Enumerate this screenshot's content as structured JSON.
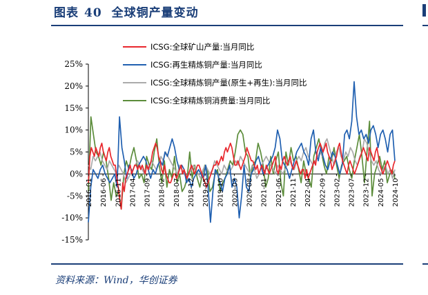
{
  "figure": {
    "label": "图表",
    "number": "40",
    "title": "全球铜产量变动",
    "source": "资料来源：Wind，华创证券"
  },
  "chart_data": {
    "type": "line",
    "y_unit": "%",
    "ylim": [
      -15,
      25
    ],
    "y_ticks": [
      25,
      20,
      15,
      10,
      5,
      0,
      -5,
      -10,
      -15
    ],
    "y_tick_labels": [
      "25%",
      "20%",
      "15%",
      "10%",
      "5%",
      "0%",
      "-5%",
      "-10%",
      "-15%"
    ],
    "x_start": "2016-01",
    "x_end": "2024-10",
    "x_tick_labels": [
      "2016-01",
      "2016-06",
      "2016-11",
      "2017-04",
      "2017-09",
      "2018-02",
      "2018-07",
      "2018-12",
      "2019-05",
      "2019-10",
      "2020-03",
      "2020-08",
      "2021-01",
      "2021-06",
      "2021-11",
      "2022-04",
      "2022-09",
      "2023-02",
      "2023-07",
      "2023-12",
      "2024-05",
      "2024-10"
    ],
    "grid": false,
    "legend_position": "top",
    "series": [
      {
        "name": "ICSG:全球矿山产量:当月同比",
        "color": "#e8262c",
        "values": [
          -2,
          4,
          6,
          5,
          4,
          6,
          5,
          4,
          6,
          7,
          5,
          4,
          3,
          5,
          6,
          4,
          3,
          2,
          2,
          -1,
          -3,
          -6,
          -8,
          -2,
          -4,
          -1,
          0,
          1,
          2,
          0,
          1,
          2,
          2,
          1,
          2,
          1,
          2,
          1,
          0,
          2,
          1,
          2,
          3,
          5,
          6,
          7,
          6,
          4,
          3,
          1,
          0,
          2,
          0,
          -1,
          -2,
          -2,
          -1,
          0,
          0,
          -1,
          0,
          1,
          2,
          0,
          1,
          0,
          -1,
          0,
          1,
          2,
          1,
          0,
          1,
          2,
          2,
          1,
          0,
          -1,
          -2,
          -3,
          -2,
          -1,
          0,
          1,
          2,
          2,
          3,
          2,
          3,
          4,
          3,
          5,
          6,
          5,
          6,
          7,
          6,
          4,
          2,
          2,
          3,
          2,
          1,
          2,
          3,
          4,
          6,
          5,
          4,
          3,
          3,
          2,
          1,
          2,
          0,
          1,
          2,
          1,
          0,
          2,
          1,
          0,
          1,
          2,
          3,
          4,
          1,
          0,
          2,
          1,
          3,
          4,
          3,
          2,
          3,
          4,
          2,
          1,
          2,
          3,
          2,
          1,
          0,
          1,
          1,
          -1,
          1,
          -1,
          0,
          1,
          2,
          3,
          2,
          5,
          6,
          7,
          6,
          5,
          6,
          7,
          5,
          4,
          3,
          1,
          2,
          3,
          4,
          6,
          7,
          5,
          3,
          2,
          1,
          0,
          2,
          3,
          2,
          1,
          0,
          1,
          2,
          3,
          4,
          5,
          6,
          5,
          4,
          3,
          6,
          5,
          4,
          3,
          5,
          6,
          4,
          2,
          1,
          0,
          1,
          2,
          3,
          2,
          1,
          0,
          2,
          3
        ]
      },
      {
        "name": "ICSG:再生精炼铜产量:当月同比",
        "color": "#1f5fb0",
        "values": [
          -11,
          -3,
          1,
          0,
          -1,
          1,
          2,
          0,
          -1,
          -2,
          -1,
          0,
          -3,
          13,
          6,
          3,
          -1,
          2,
          1,
          -1,
          0,
          2,
          3,
          4,
          3,
          1,
          -1,
          1,
          0,
          2,
          3,
          2,
          5,
          4,
          6,
          8,
          6,
          3,
          1,
          2,
          1,
          -2,
          -1,
          -3,
          -1,
          0,
          1,
          0,
          -1,
          2,
          -3,
          -11,
          -4,
          1,
          0,
          -2,
          -4,
          -1,
          0,
          2,
          -3,
          -1,
          -3,
          -10,
          -5,
          2,
          -3,
          -4,
          0,
          1,
          3,
          4,
          2,
          0,
          1,
          2,
          3,
          4,
          6,
          10,
          8,
          3,
          2,
          1,
          -1,
          1,
          3,
          5,
          6,
          7,
          5,
          4,
          2,
          8,
          10,
          5,
          3,
          6,
          4,
          2,
          1,
          3,
          5,
          4,
          2,
          0,
          2,
          9,
          10,
          8,
          12,
          21,
          13,
          9,
          10,
          8,
          9,
          7,
          10,
          11,
          9,
          6,
          9,
          10,
          8,
          5,
          9,
          10,
          3
        ]
      },
      {
        "name": "ICSG:全球精炼铜产量(原生+再生):当月同比",
        "color": "#aaaaaa",
        "values": [
          2,
          1,
          4,
          3,
          4,
          5,
          3,
          2,
          1,
          3,
          2,
          1,
          0,
          2,
          1,
          0,
          -2,
          -1,
          0,
          1,
          2,
          3,
          2,
          1,
          0,
          2,
          1,
          3,
          2,
          1,
          2,
          4,
          3,
          5,
          4,
          3,
          2,
          1,
          0,
          2,
          1,
          0,
          -1,
          0,
          1,
          2,
          1,
          0,
          -1,
          1,
          2,
          1,
          0,
          1,
          3,
          2,
          1,
          0,
          2,
          1,
          0,
          1,
          2,
          3,
          2,
          4,
          3,
          2,
          1,
          0,
          2,
          1,
          -1,
          0,
          2,
          3,
          4,
          3,
          2,
          1,
          0,
          2,
          1,
          0,
          1,
          2,
          3,
          2,
          1,
          3,
          4,
          3,
          5,
          6,
          4,
          3,
          2,
          3,
          4,
          5,
          4,
          7,
          8,
          6,
          4,
          2,
          5,
          6,
          4,
          3,
          5,
          4,
          6,
          5,
          3,
          2,
          4,
          5,
          8,
          7,
          5,
          3,
          2,
          3,
          1,
          0,
          1,
          2,
          0,
          1,
          -1,
          1
        ]
      },
      {
        "name": "ICSG:全球精炼铜消费量:当月同比",
        "color": "#5b8c3a",
        "values": [
          -4,
          13,
          9,
          5,
          4,
          2,
          5,
          3,
          -1,
          -6,
          -2,
          -5,
          -4,
          -8,
          0,
          3,
          1,
          4,
          6,
          3,
          -1,
          0,
          -2,
          4,
          2,
          1,
          5,
          8,
          2,
          -2,
          3,
          -3,
          1,
          -1,
          4,
          -2,
          0,
          -4,
          -3,
          -1,
          5,
          -1,
          2,
          -1,
          -3,
          0,
          2,
          1,
          -4,
          -3,
          0,
          1,
          -4,
          -2,
          -1,
          1,
          3,
          2,
          5,
          9,
          10,
          9,
          5,
          4,
          -1,
          2,
          3,
          7,
          5,
          2,
          -3,
          -1,
          4,
          0,
          3,
          5,
          -2,
          -5,
          5,
          2,
          6,
          3,
          4,
          1,
          -2,
          3,
          0,
          -1,
          -3,
          4,
          6,
          8,
          5,
          2,
          0,
          4,
          3,
          6,
          2,
          -1,
          2,
          3,
          4,
          1,
          -1,
          3,
          6,
          9,
          4,
          -2,
          5,
          12,
          -5,
          0,
          2,
          4,
          1,
          3,
          -2,
          0,
          1,
          -1
        ]
      }
    ]
  }
}
